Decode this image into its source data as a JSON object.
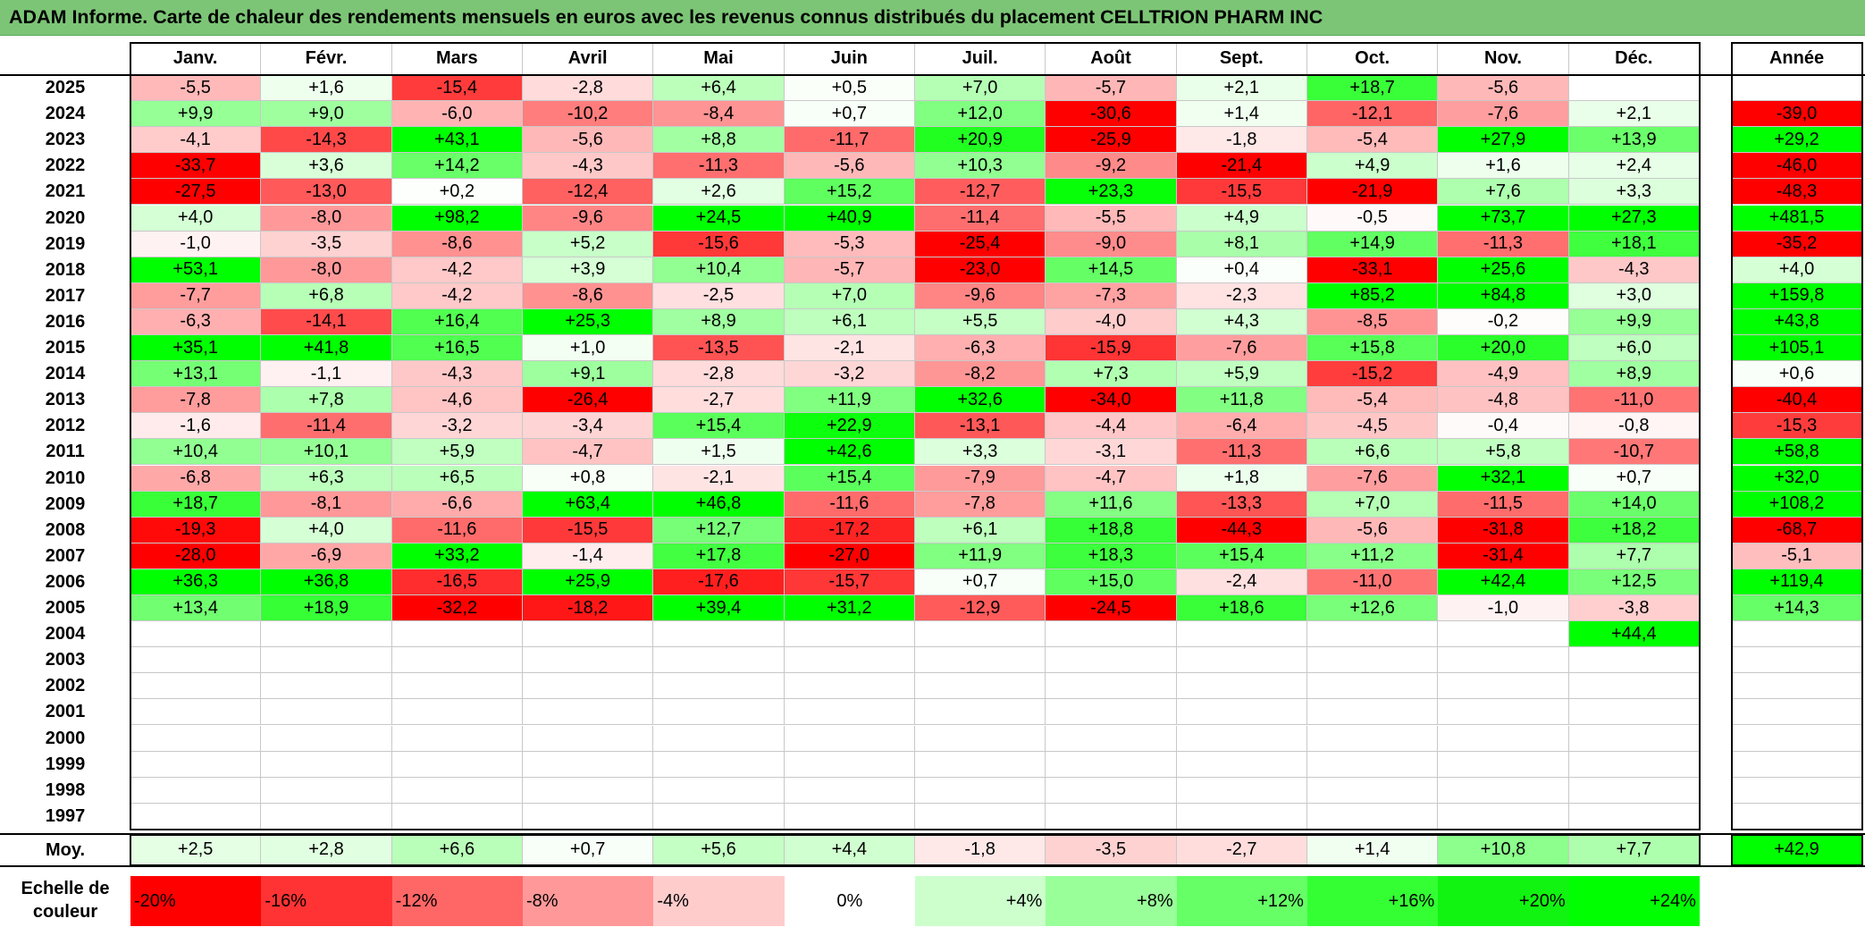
{
  "title": "ADAM Informe. Carte de chaleur des rendements mensuels en euros avec les revenus connus distribués du placement CELLTRION PHARM INC",
  "chart_data": {
    "type": "heatmap",
    "months": [
      "Janv.",
      "Févr.",
      "Mars",
      "Avril",
      "Mai",
      "Juin",
      "Juil.",
      "Août",
      "Sept.",
      "Oct.",
      "Nov.",
      "Déc."
    ],
    "annual_header": "Année",
    "rows": [
      {
        "year": "2025",
        "values": [
          "-5,5",
          "+1,6",
          "-15,4",
          "-2,8",
          "+6,4",
          "+0,5",
          "+7,0",
          "-5,7",
          "+2,1",
          "+18,7",
          "-5,6",
          ""
        ],
        "annual": ""
      },
      {
        "year": "2024",
        "values": [
          "+9,9",
          "+9,0",
          "-6,0",
          "-10,2",
          "-8,4",
          "+0,7",
          "+12,0",
          "-30,6",
          "+1,4",
          "-12,1",
          "-7,6",
          "+2,1"
        ],
        "annual": "-39,0"
      },
      {
        "year": "2023",
        "values": [
          "-4,1",
          "-14,3",
          "+43,1",
          "-5,6",
          "+8,8",
          "-11,7",
          "+20,9",
          "-25,9",
          "-1,8",
          "-5,4",
          "+27,9",
          "+13,9"
        ],
        "annual": "+29,2"
      },
      {
        "year": "2022",
        "values": [
          "-33,7",
          "+3,6",
          "+14,2",
          "-4,3",
          "-11,3",
          "-5,6",
          "+10,3",
          "-9,2",
          "-21,4",
          "+4,9",
          "+1,6",
          "+2,4"
        ],
        "annual": "-46,0"
      },
      {
        "year": "2021",
        "values": [
          "-27,5",
          "-13,0",
          "+0,2",
          "-12,4",
          "+2,6",
          "+15,2",
          "-12,7",
          "+23,3",
          "-15,5",
          "-21,9",
          "+7,6",
          "+3,3"
        ],
        "annual": "-48,3"
      },
      {
        "year": "2020",
        "values": [
          "+4,0",
          "-8,0",
          "+98,2",
          "-9,6",
          "+24,5",
          "+40,9",
          "-11,4",
          "-5,5",
          "+4,9",
          "-0,5",
          "+73,7",
          "+27,3"
        ],
        "annual": "+481,5"
      },
      {
        "year": "2019",
        "values": [
          "-1,0",
          "-3,5",
          "-8,6",
          "+5,2",
          "-15,6",
          "-5,3",
          "-25,4",
          "-9,0",
          "+8,1",
          "+14,9",
          "-11,3",
          "+18,1"
        ],
        "annual": "-35,2"
      },
      {
        "year": "2018",
        "values": [
          "+53,1",
          "-8,0",
          "-4,2",
          "+3,9",
          "+10,4",
          "-5,7",
          "-23,0",
          "+14,5",
          "+0,4",
          "-33,1",
          "+25,6",
          "-4,3"
        ],
        "annual": "+4,0"
      },
      {
        "year": "2017",
        "values": [
          "-7,7",
          "+6,8",
          "-4,2",
          "-8,6",
          "-2,5",
          "+7,0",
          "-9,6",
          "-7,3",
          "-2,3",
          "+85,2",
          "+84,8",
          "+3,0"
        ],
        "annual": "+159,8"
      },
      {
        "year": "2016",
        "values": [
          "-6,3",
          "-14,1",
          "+16,4",
          "+25,3",
          "+8,9",
          "+6,1",
          "+5,5",
          "-4,0",
          "+4,3",
          "-8,5",
          "-0,2",
          "+9,9"
        ],
        "annual": "+43,8"
      },
      {
        "year": "2015",
        "values": [
          "+35,1",
          "+41,8",
          "+16,5",
          "+1,0",
          "-13,5",
          "-2,1",
          "-6,3",
          "-15,9",
          "-7,6",
          "+15,8",
          "+20,0",
          "+6,0"
        ],
        "annual": "+105,1"
      },
      {
        "year": "2014",
        "values": [
          "+13,1",
          "-1,1",
          "-4,3",
          "+9,1",
          "-2,8",
          "-3,2",
          "-8,2",
          "+7,3",
          "+5,9",
          "-15,2",
          "-4,9",
          "+8,9"
        ],
        "annual": "+0,6"
      },
      {
        "year": "2013",
        "values": [
          "-7,8",
          "+7,8",
          "-4,6",
          "-26,4",
          "-2,7",
          "+11,9",
          "+32,6",
          "-34,0",
          "+11,8",
          "-5,4",
          "-4,8",
          "-11,0"
        ],
        "annual": "-40,4"
      },
      {
        "year": "2012",
        "values": [
          "-1,6",
          "-11,4",
          "-3,2",
          "-3,4",
          "+15,4",
          "+22,9",
          "-13,1",
          "-4,4",
          "-6,4",
          "-4,5",
          "-0,4",
          "-0,8"
        ],
        "annual": "-15,3"
      },
      {
        "year": "2011",
        "values": [
          "+10,4",
          "+10,1",
          "+5,9",
          "-4,7",
          "+1,5",
          "+42,6",
          "+3,3",
          "-3,1",
          "-11,3",
          "+6,6",
          "+5,8",
          "-10,7"
        ],
        "annual": "+58,8"
      },
      {
        "year": "2010",
        "values": [
          "-6,8",
          "+6,3",
          "+6,5",
          "+0,8",
          "-2,1",
          "+15,4",
          "-7,9",
          "-4,7",
          "+1,8",
          "-7,6",
          "+32,1",
          "+0,7"
        ],
        "annual": "+32,0"
      },
      {
        "year": "2009",
        "values": [
          "+18,7",
          "-8,1",
          "-6,6",
          "+63,4",
          "+46,8",
          "-11,6",
          "-7,8",
          "+11,6",
          "-13,3",
          "+7,0",
          "-11,5",
          "+14,0"
        ],
        "annual": "+108,2"
      },
      {
        "year": "2008",
        "values": [
          "-19,3",
          "+4,0",
          "-11,6",
          "-15,5",
          "+12,7",
          "-17,2",
          "+6,1",
          "+18,8",
          "-44,3",
          "-5,6",
          "-31,8",
          "+18,2"
        ],
        "annual": "-68,7"
      },
      {
        "year": "2007",
        "values": [
          "-28,0",
          "-6,9",
          "+33,2",
          "-1,4",
          "+17,8",
          "-27,0",
          "+11,9",
          "+18,3",
          "+15,4",
          "+11,2",
          "-31,4",
          "+7,7"
        ],
        "annual": "-5,1"
      },
      {
        "year": "2006",
        "values": [
          "+36,3",
          "+36,8",
          "-16,5",
          "+25,9",
          "-17,6",
          "-15,7",
          "+0,7",
          "+15,0",
          "-2,4",
          "-11,0",
          "+42,4",
          "+12,5"
        ],
        "annual": "+119,4"
      },
      {
        "year": "2005",
        "values": [
          "+13,4",
          "+18,9",
          "-32,2",
          "-18,2",
          "+39,4",
          "+31,2",
          "-12,9",
          "-24,5",
          "+18,6",
          "+12,6",
          "-1,0",
          "-3,8"
        ],
        "annual": "+14,3"
      },
      {
        "year": "2004",
        "values": [
          "",
          "",
          "",
          "",
          "",
          "",
          "",
          "",
          "",
          "",
          "",
          "+44,4"
        ],
        "annual": ""
      },
      {
        "year": "2003",
        "values": [
          "",
          "",
          "",
          "",
          "",
          "",
          "",
          "",
          "",
          "",
          "",
          ""
        ],
        "annual": ""
      },
      {
        "year": "2002",
        "values": [
          "",
          "",
          "",
          "",
          "",
          "",
          "",
          "",
          "",
          "",
          "",
          ""
        ],
        "annual": ""
      },
      {
        "year": "2001",
        "values": [
          "",
          "",
          "",
          "",
          "",
          "",
          "",
          "",
          "",
          "",
          "",
          ""
        ],
        "annual": ""
      },
      {
        "year": "2000",
        "values": [
          "",
          "",
          "",
          "",
          "",
          "",
          "",
          "",
          "",
          "",
          "",
          ""
        ],
        "annual": ""
      },
      {
        "year": "1999",
        "values": [
          "",
          "",
          "",
          "",
          "",
          "",
          "",
          "",
          "",
          "",
          "",
          ""
        ],
        "annual": ""
      },
      {
        "year": "1998",
        "values": [
          "",
          "",
          "",
          "",
          "",
          "",
          "",
          "",
          "",
          "",
          "",
          ""
        ],
        "annual": ""
      },
      {
        "year": "1997",
        "values": [
          "",
          "",
          "",
          "",
          "",
          "",
          "",
          "",
          "",
          "",
          "",
          ""
        ],
        "annual": ""
      }
    ],
    "average": {
      "label": "Moy.",
      "values": [
        "+2,5",
        "+2,8",
        "+6,6",
        "+0,7",
        "+5,6",
        "+4,4",
        "-1,8",
        "-3,5",
        "-2,7",
        "+1,4",
        "+10,8",
        "+7,7"
      ],
      "annual": "+42,9"
    },
    "color_scale": {
      "label": "Echelle de couleur",
      "steps": [
        {
          "label": "-20%",
          "value": -20,
          "color": "#ff0000"
        },
        {
          "label": "-16%",
          "value": -16,
          "color": "#ff3333"
        },
        {
          "label": "-12%",
          "value": -12,
          "color": "#ff6666"
        },
        {
          "label": "-8%",
          "value": -8,
          "color": "#ff9999"
        },
        {
          "label": "-4%",
          "value": -4,
          "color": "#ffcccc"
        },
        {
          "label": "0%",
          "value": 0,
          "color": "#ffffff"
        },
        {
          "label": "+4%",
          "value": 4,
          "color": "#ccffcc"
        },
        {
          "label": "+8%",
          "value": 8,
          "color": "#99ff99"
        },
        {
          "label": "+12%",
          "value": 12,
          "color": "#66ff66"
        },
        {
          "label": "+16%",
          "value": 16,
          "color": "#33ff33"
        },
        {
          "label": "+20%",
          "value": 20,
          "color": "#11f411"
        },
        {
          "label": "+24%",
          "value": 24,
          "color": "#00ff00"
        }
      ]
    }
  }
}
